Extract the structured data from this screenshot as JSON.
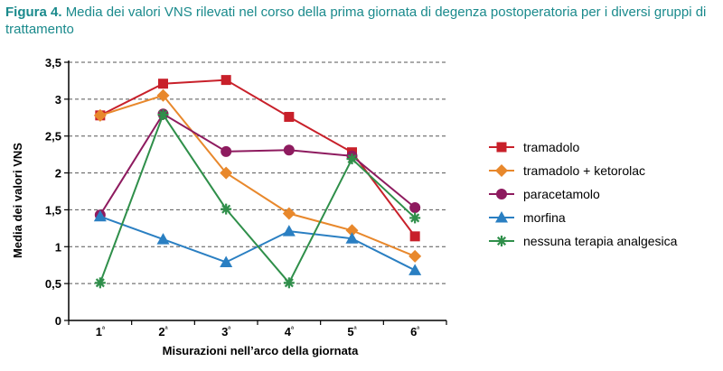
{
  "caption": {
    "label": "Figura 4.",
    "text": "Media dei valori VNS rilevati nel corso della prima giornata di degenza postoperatoria per i diversi gruppi di trattamento"
  },
  "chart_data": {
    "type": "line",
    "xlabel": "Misurazioni nell’arco della giornata",
    "ylabel": "Media dei valori VNS",
    "categories": [
      "1ª",
      "2ª",
      "3ª",
      "4ª",
      "5ª",
      "6ª"
    ],
    "ylim": [
      0,
      3.5
    ],
    "yticks": [
      0,
      0.5,
      1,
      1.5,
      2,
      2.5,
      3,
      3.5
    ],
    "ytick_labels": [
      "0",
      "0,5",
      "1",
      "1,5",
      "2",
      "2,5",
      "3",
      "3,5"
    ],
    "grid": "horizontal dashed",
    "legend_position": "right",
    "series": [
      {
        "name": "tramadolo",
        "values": [
          2.78,
          3.21,
          3.26,
          2.76,
          2.28,
          1.14
        ],
        "color": "#c8202a",
        "marker": "square"
      },
      {
        "name": "tramadolo + ketorolac",
        "values": [
          2.78,
          3.05,
          2.0,
          1.45,
          1.22,
          0.87
        ],
        "color": "#e8882c",
        "marker": "diamond"
      },
      {
        "name": "paracetamolo",
        "values": [
          1.43,
          2.8,
          2.29,
          2.31,
          2.23,
          1.53
        ],
        "color": "#8e1b5f",
        "marker": "circle"
      },
      {
        "name": "morfina",
        "values": [
          1.41,
          1.1,
          0.79,
          1.21,
          1.11,
          0.68
        ],
        "color": "#2a7fc2",
        "marker": "triangle"
      },
      {
        "name": "nessuna terapia analgesica",
        "values": [
          0.51,
          2.79,
          1.51,
          0.51,
          2.19,
          1.39
        ],
        "color": "#2f8f4a",
        "marker": "asterisk"
      }
    ]
  }
}
